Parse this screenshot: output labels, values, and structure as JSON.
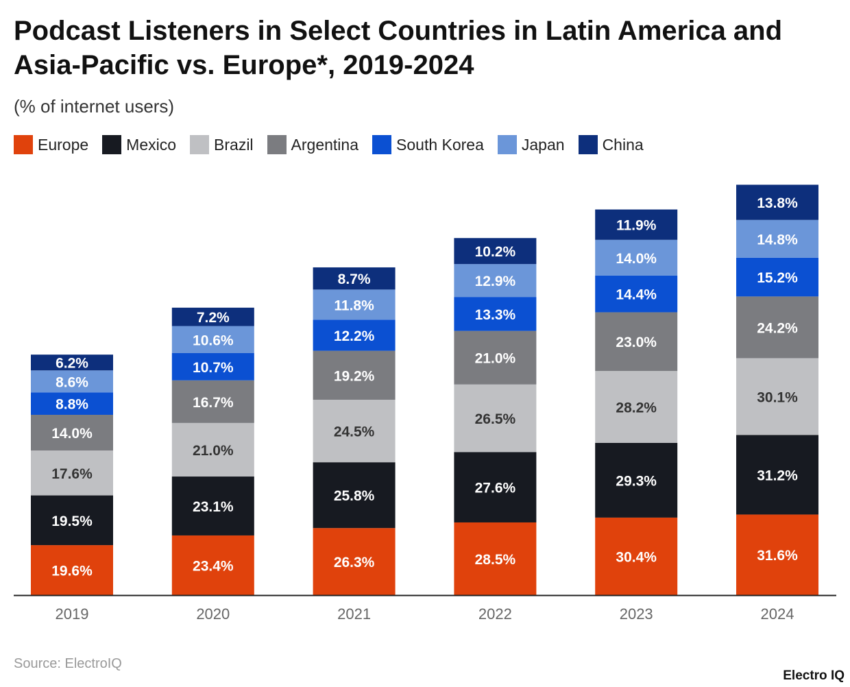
{
  "chart_data": {
    "type": "bar",
    "stacked": true,
    "title": "Podcast Listeners in Select Countries in Latin America and Asia-Pacific vs. Europe*, 2019-2024",
    "subtitle": "(% of internet users)",
    "categories": [
      "2019",
      "2020",
      "2021",
      "2022",
      "2023",
      "2024"
    ],
    "legend_position": "top-left",
    "grid": false,
    "series": [
      {
        "name": "Europe",
        "color": "#e0420c",
        "label_color": "#ffffff",
        "values": [
          19.6,
          23.4,
          26.3,
          28.5,
          30.4,
          31.6
        ]
      },
      {
        "name": "Mexico",
        "color": "#171a21",
        "label_color": "#ffffff",
        "values": [
          19.5,
          23.1,
          25.8,
          27.6,
          29.3,
          31.2
        ]
      },
      {
        "name": "Brazil",
        "color": "#bfc0c3",
        "label_color": "#333333",
        "values": [
          17.6,
          21.0,
          24.5,
          26.5,
          28.2,
          30.1
        ]
      },
      {
        "name": "Argentina",
        "color": "#7b7c80",
        "label_color": "#ffffff",
        "values": [
          14.0,
          16.7,
          19.2,
          21.0,
          23.0,
          24.2
        ]
      },
      {
        "name": "South Korea",
        "color": "#0b50d2",
        "label_color": "#ffffff",
        "values": [
          8.8,
          10.7,
          12.2,
          13.3,
          14.4,
          15.2
        ]
      },
      {
        "name": "Japan",
        "color": "#6b96d9",
        "label_color": "#ffffff",
        "values": [
          8.6,
          10.6,
          11.8,
          12.9,
          14.0,
          14.8
        ]
      },
      {
        "name": "China",
        "color": "#0d2f7c",
        "label_color": "#ffffff",
        "values": [
          6.2,
          7.2,
          8.7,
          10.2,
          11.9,
          13.8
        ]
      }
    ]
  },
  "source": "Source: ElectroIQ",
  "logo": "Electro IQ"
}
